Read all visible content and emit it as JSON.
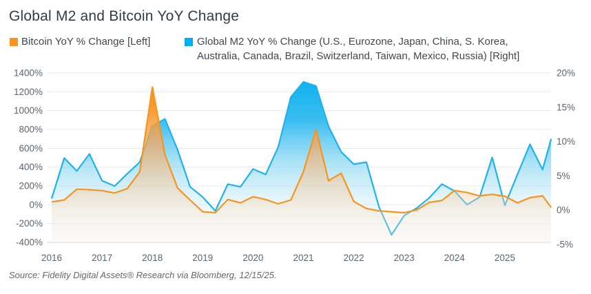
{
  "title": "Global M2 and Bitcoin YoY Change",
  "legend": [
    {
      "label_lines": [
        "Bitcoin YoY % Change [Left]"
      ],
      "color": "#F7941D"
    },
    {
      "label_lines": [
        "Global M2 YoY % Change (U.S., Eurozone, Japan, China, S. Korea,",
        "Australia, Canada, Brazil, Switzerland, Taiwan, Mexico, Russia) [Right]"
      ],
      "color": "#00AEEF"
    }
  ],
  "source": "Source: Fidelity Digital Assets® Research via Bloomberg, 12/15/25.",
  "colors": {
    "bitcoin_line": "#F7941D",
    "m2_line": "#1FB1EC",
    "grid": "#e8e8e8",
    "axis_line": "#cdd2d6",
    "axis_text": "#5a646e"
  },
  "chart_data": {
    "type": "area",
    "title": "Global M2 and Bitcoin YoY Change",
    "grid": "horizontal",
    "legend_position": "top",
    "x_unit": "quarterly (decimal years)",
    "x": [
      2016,
      2016.25,
      2016.5,
      2016.75,
      2017,
      2017.25,
      2017.5,
      2017.75,
      2018,
      2018.25,
      2018.5,
      2018.75,
      2019,
      2019.25,
      2019.5,
      2019.75,
      2020,
      2020.25,
      2020.5,
      2020.75,
      2021,
      2021.25,
      2021.5,
      2021.75,
      2022,
      2022.25,
      2022.5,
      2022.75,
      2023,
      2023.25,
      2023.5,
      2023.75,
      2024,
      2024.25,
      2024.5,
      2024.75,
      2025,
      2025.25,
      2025.5,
      2025.75,
      2025.92
    ],
    "series": [
      {
        "name": "Bitcoin YoY % Change [Left]",
        "axis": "left",
        "color": "#F7941D",
        "values": [
          30,
          50,
          165,
          160,
          150,
          125,
          170,
          350,
          1250,
          530,
          178,
          50,
          -75,
          -85,
          55,
          20,
          85,
          55,
          10,
          50,
          350,
          800,
          255,
          335,
          35,
          -40,
          -65,
          -75,
          -85,
          -55,
          25,
          45,
          150,
          130,
          95,
          110,
          90,
          20,
          75,
          95,
          -30
        ]
      },
      {
        "name": "Global M2 YoY % Change (U.S., Eurozone, Japan, China, S. Korea, Australia, Canada, Brazil, Switzerland, Taiwan, Mexico, Russia) [Right]",
        "axis": "right",
        "color": "#00AEEF",
        "values": [
          1.7,
          7.6,
          5.7,
          8.2,
          4.3,
          3.5,
          5.3,
          7.0,
          12.3,
          13.3,
          8.8,
          3.4,
          1.9,
          -0.1,
          3.8,
          3.4,
          6.0,
          5.2,
          9.2,
          16.5,
          18.7,
          18.1,
          12.2,
          8.5,
          6.7,
          7.0,
          0.5,
          -3.6,
          -0.8,
          0.3,
          1.8,
          3.8,
          2.8,
          0.8,
          1.9,
          7.7,
          0.7,
          5.2,
          9.6,
          5.9,
          10.4
        ]
      }
    ],
    "left_axis": {
      "min": -400,
      "max": 1400,
      "ticks": [
        1400,
        1200,
        1000,
        800,
        600,
        400,
        200,
        0,
        -200,
        -400
      ],
      "tick_labels": [
        "1400%",
        "1200%",
        "1000%",
        "800%",
        "600%",
        "400%",
        "200%",
        "0%",
        "-200%",
        "-400%"
      ]
    },
    "right_axis": {
      "min": -5,
      "max": 20,
      "ticks": [
        20,
        15,
        10,
        5,
        0,
        -5
      ],
      "tick_labels": [
        "20%",
        "15%",
        "10%",
        "5%",
        "0%",
        "-5%"
      ]
    },
    "x_axis": {
      "ticks": [
        2016,
        2017,
        2018,
        2019,
        2020,
        2021,
        2022,
        2023,
        2024,
        2025
      ],
      "tick_labels": [
        "2016",
        "2017",
        "2018",
        "2019",
        "2020",
        "2021",
        "2022",
        "2023",
        "2024",
        "2025"
      ]
    }
  }
}
